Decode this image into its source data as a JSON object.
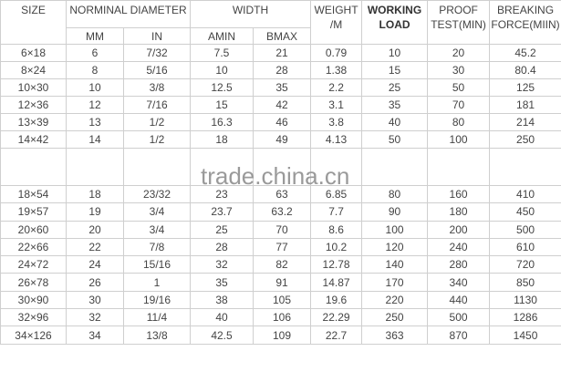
{
  "headers": {
    "size": "SIZE",
    "nominal_diameter": "NORMINAL DIAMETER",
    "width": "WIDTH",
    "weight": "WEIGHT /M",
    "working_load": "WORKING LOAD",
    "proof_test": "PROOF TEST(MIN)",
    "breaking_force": "BREAKING FORCE(MIIN)",
    "mm": "MM",
    "in": "IN",
    "amin": "AMIN",
    "bmax": "BMAX"
  },
  "rows_top": [
    [
      "6×18",
      "6",
      "7/32",
      "7.5",
      "21",
      "0.79",
      "10",
      "20",
      "45.2"
    ],
    [
      "8×24",
      "8",
      "5/16",
      "10",
      "28",
      "1.38",
      "15",
      "30",
      "80.4"
    ],
    [
      "10×30",
      "10",
      "3/8",
      "12.5",
      "35",
      "2.2",
      "25",
      "50",
      "125"
    ],
    [
      "12×36",
      "12",
      "7/16",
      "15",
      "42",
      "3.1",
      "35",
      "70",
      "181"
    ],
    [
      "13×39",
      "13",
      "1/2",
      "16.3",
      "46",
      "3.8",
      "40",
      "80",
      "214"
    ],
    [
      "14×42",
      "14",
      "1/2",
      "18",
      "49",
      "4.13",
      "50",
      "100",
      "250"
    ]
  ],
  "rows_bottom": [
    [
      "18×54",
      "18",
      "23/32",
      "23",
      "63",
      "6.85",
      "80",
      "160",
      "410"
    ],
    [
      "19×57",
      "19",
      "3/4",
      "23.7",
      "63.2",
      "7.7",
      "90",
      "180",
      "450"
    ],
    [
      "20×60",
      "20",
      "3/4",
      "25",
      "70",
      "8.6",
      "100",
      "200",
      "500"
    ],
    [
      "22×66",
      "22",
      "7/8",
      "28",
      "77",
      "10.2",
      "120",
      "240",
      "610"
    ],
    [
      "24×72",
      "24",
      "15/16",
      "32",
      "82",
      "12.78",
      "140",
      "280",
      "720"
    ],
    [
      "26×78",
      "26",
      "1",
      "35",
      "91",
      "14.87",
      "170",
      "340",
      "850"
    ],
    [
      "30×90",
      "30",
      "19/16",
      "38",
      "105",
      "19.6",
      "220",
      "440",
      "1130"
    ],
    [
      "32×96",
      "32",
      "11/4",
      "40",
      "106",
      "22.29",
      "250",
      "500",
      "1286"
    ],
    [
      "34×126",
      "34",
      "13/8",
      "42.5",
      "109",
      "22.7",
      "363",
      "870",
      "1450"
    ]
  ],
  "watermark": "trade.china.cn"
}
